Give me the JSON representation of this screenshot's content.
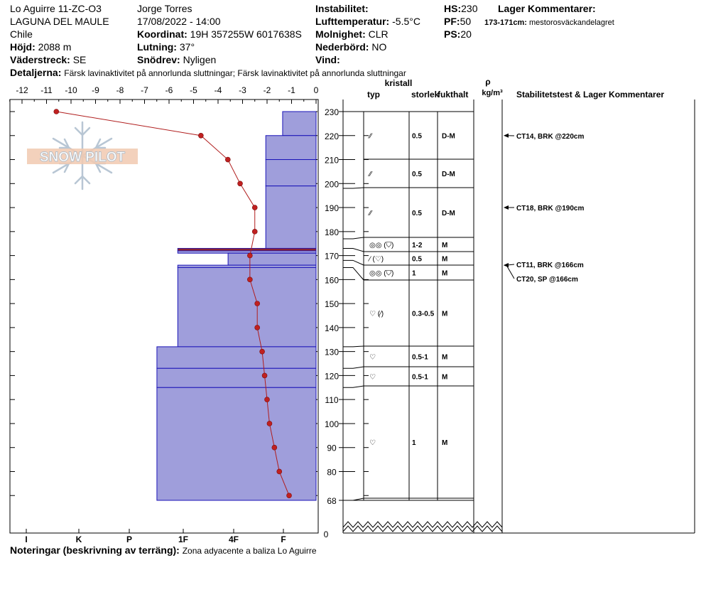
{
  "header": {
    "location": "Lo Aguirre 11-ZC-O3",
    "range": "LAGUNA DEL MAULE",
    "country": "Chile",
    "elevation_label": "Höjd:",
    "elevation_value": "2088 m",
    "aspect_label": "Väderstreck:",
    "aspect_value": "SE",
    "observer": "Jorge Torres",
    "datetime": "17/08/2022 - 14:00",
    "coord_label": "Koordinat:",
    "coord_value": "19H 357255W 6017638S",
    "slope_label": "Lutning:",
    "slope_value": "37°",
    "wind_loading_label": "Snödrev:",
    "wind_loading_value": "Nyligen",
    "instability_label": "Instabilitet:",
    "air_temp_label": "Lufttemperatur:",
    "air_temp_value": "-5.5°C",
    "sky_label": "Molnighet:",
    "sky_value": "CLR",
    "precip_label": "Nederbörd:",
    "precip_value": "NO",
    "wind_label": "Vind:",
    "hs_label": "HS:",
    "hs_value": "230",
    "pf_label": "PF:",
    "pf_value": "50",
    "ps_label": "PS:",
    "ps_value": "20",
    "layer_comments_label": "Lager Kommentarer:",
    "layer_comment_depth": "173-171cm:",
    "layer_comment_text": "mestorosväckandelagret",
    "details_label": "Detaljerna:",
    "details_text": "Färsk lavinaktivitet på annorlunda sluttningar; Färsk lavinaktivitet på annorlunda sluttningar",
    "notes_label": "Noteringar (beskrivning av terräng):",
    "notes_text": "Zona adyacente a baliza Lo Aguirre"
  },
  "logo_text": "SNOW PILOT",
  "columns": {
    "crystal": "kristall",
    "type": "typ",
    "size": "storlek",
    "moisture": "fukthalt",
    "rho": "ρ",
    "density_unit": "kg/m³",
    "stability": "Stabilitetstest & Lager Kommentarer"
  },
  "chart_data": {
    "type": "snow_profile",
    "temperature_axis": {
      "ticks": [
        "-12",
        "-11",
        "-10",
        "-9",
        "-8",
        "-7",
        "-6",
        "-5",
        "-4",
        "-3",
        "-2",
        "-1",
        "0"
      ],
      "range": [
        -12.5,
        0
      ]
    },
    "hardness_axis": {
      "ticks": [
        "I",
        "K",
        "P",
        "1F",
        "4F",
        "F"
      ]
    },
    "height_axis": {
      "ticks": [
        "230",
        "220",
        "210",
        "200",
        "190",
        "180",
        "170",
        "160",
        "150",
        "140",
        "130",
        "120",
        "110",
        "100",
        "90",
        "80",
        "68"
      ],
      "break_label": "0",
      "range": [
        68,
        230
      ]
    },
    "temperature_profile": [
      {
        "h": 230,
        "t": -10.6
      },
      {
        "h": 220,
        "t": -4.7
      },
      {
        "h": 210,
        "t": -3.6
      },
      {
        "h": 200,
        "t": -3.1
      },
      {
        "h": 190,
        "t": -2.5
      },
      {
        "h": 180,
        "t": -2.5
      },
      {
        "h": 170,
        "t": -2.7
      },
      {
        "h": 160,
        "t": -2.7
      },
      {
        "h": 150,
        "t": -2.4
      },
      {
        "h": 140,
        "t": -2.4
      },
      {
        "h": 130,
        "t": -2.2
      },
      {
        "h": 120,
        "t": -2.1
      },
      {
        "h": 110,
        "t": -2.0
      },
      {
        "h": 100,
        "t": -1.9
      },
      {
        "h": 90,
        "t": -1.7
      },
      {
        "h": 80,
        "t": -1.5
      },
      {
        "h": 70,
        "t": -1.1
      }
    ],
    "hardness_profile": [
      {
        "top": 230,
        "bottom": 220,
        "hardness": 1.33
      },
      {
        "top": 220,
        "bottom": 210,
        "hardness": 2.0
      },
      {
        "top": 210,
        "bottom": 199,
        "hardness": 2.0
      },
      {
        "top": 199,
        "bottom": 173,
        "hardness": 2.0
      },
      {
        "top": 173,
        "bottom": 172,
        "hardness": 5.5
      },
      {
        "top": 172,
        "bottom": 171,
        "hardness": 5.5
      },
      {
        "top": 171,
        "bottom": 166,
        "hardness": 3.5
      },
      {
        "top": 166,
        "bottom": 165,
        "hardness": 5.5
      },
      {
        "top": 165,
        "bottom": 132,
        "hardness": 5.5
      },
      {
        "top": 132,
        "bottom": 123,
        "hardness": 6.33
      },
      {
        "top": 123,
        "bottom": 115,
        "hardness": 6.33
      },
      {
        "top": 115,
        "bottom": 68,
        "hardness": 6.33
      }
    ],
    "layers": [
      {
        "top": 230,
        "bottom": 210,
        "type": "⁄⁄",
        "size": "0.5",
        "moisture": "D-M"
      },
      {
        "top": 210,
        "bottom": 198,
        "type": "⁄⁄",
        "size": "0.5",
        "moisture": "D-M"
      },
      {
        "top": 198,
        "bottom": 177,
        "type": "⁄⁄",
        "size": "0.5",
        "moisture": "D-M"
      },
      {
        "top": 177,
        "bottom": 173,
        "type": "◎◎ (⛉)",
        "size": "1-2",
        "moisture": "M"
      },
      {
        "top": 173,
        "bottom": 168,
        "type": "⁄ (♡)",
        "size": "0.5",
        "moisture": "M"
      },
      {
        "top": 168,
        "bottom": 165,
        "type": "◎◎ (⛉)",
        "size": "1",
        "moisture": "M"
      },
      {
        "top": 165,
        "bottom": 132,
        "type": "♡ (⁄)",
        "size": "0.3-0.5",
        "moisture": "M"
      },
      {
        "top": 132,
        "bottom": 123,
        "type": "♡",
        "size": "0.5-1",
        "moisture": "M"
      },
      {
        "top": 123,
        "bottom": 115,
        "type": "♡",
        "size": "0.5-1",
        "moisture": "M"
      },
      {
        "top": 115,
        "bottom": 68,
        "type": "♡",
        "size": "1",
        "moisture": "M"
      }
    ],
    "stability_tests": [
      {
        "height": 220,
        "label": "CT14, BRK @220cm"
      },
      {
        "height": 190,
        "label": "CT18, BRK @190cm"
      },
      {
        "height": 166,
        "label": "CT11, BRK @166cm"
      },
      {
        "height": 166,
        "label": "CT20, SP @166cm"
      }
    ]
  }
}
